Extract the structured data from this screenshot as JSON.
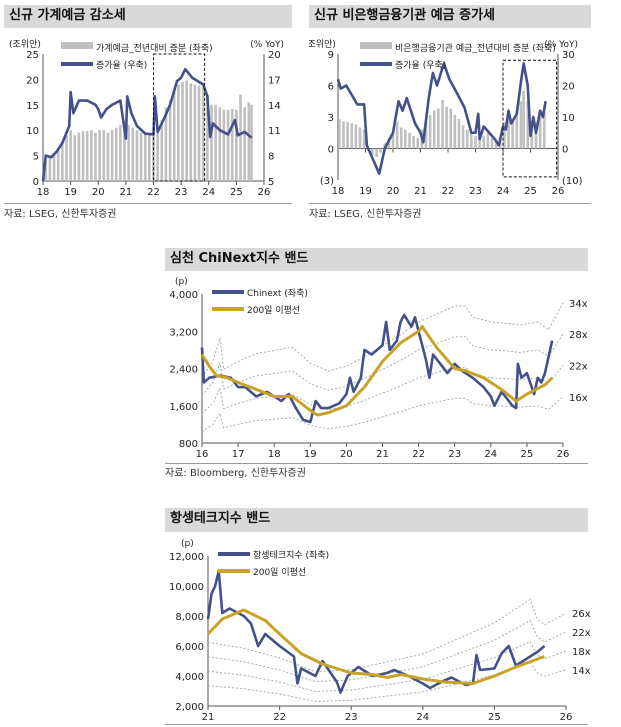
{
  "chart_data": [
    {
      "id": "c1",
      "type": "bar+line",
      "title": "신규 가계예금 감소세",
      "left_unit": "(조위안)",
      "right_unit": "(% YoY)",
      "xticks": [
        "18",
        "19",
        "20",
        "21",
        "22",
        "23",
        "24",
        "25",
        "26"
      ],
      "ylim": [
        0,
        25
      ],
      "yticks": [
        "0",
        "5",
        "10",
        "15",
        "20",
        "25"
      ],
      "y2lim": [
        5,
        20
      ],
      "y2ticks": [
        "5",
        "8",
        "11",
        "14",
        "17",
        "20"
      ],
      "series": [
        {
          "name": "가계예금_전년대비 증분 (좌축)",
          "kind": "bar",
          "color": "#bfbfbf",
          "x": [
            2018.1,
            2018.25,
            2018.4,
            2018.55,
            2018.7,
            2018.85,
            2019.0,
            2019.15,
            2019.3,
            2019.45,
            2019.6,
            2019.75,
            2019.9,
            2020.05,
            2020.2,
            2020.35,
            2020.5,
            2020.65,
            2020.8,
            2020.95,
            2021.1,
            2021.25,
            2021.4,
            2021.55,
            2021.7,
            2021.85,
            2022.0,
            2022.15,
            2022.3,
            2022.45,
            2022.6,
            2022.75,
            2022.9,
            2023.05,
            2023.2,
            2023.35,
            2023.5,
            2023.65,
            2023.8,
            2023.95,
            2024.1,
            2024.25,
            2024.4,
            2024.55,
            2024.7,
            2024.85,
            2025.0,
            2025.15,
            2025.3,
            2025.45,
            2025.55
          ],
          "y": [
            4,
            5,
            5.5,
            6.5,
            7.5,
            9,
            10,
            9,
            9.5,
            9.8,
            9.8,
            10,
            9.5,
            10,
            10,
            9.5,
            10,
            10.5,
            11,
            11,
            11,
            10.5,
            10,
            9.5,
            9.5,
            9.3,
            9.5,
            10.5,
            12,
            14.5,
            16,
            17.5,
            19,
            19.5,
            19.8,
            19.2,
            19,
            18.8,
            18.5,
            17,
            15,
            15,
            14.5,
            14,
            14,
            14.2,
            14,
            17,
            14.5,
            15.5,
            15
          ]
        },
        {
          "name": "증가율 (우축)",
          "kind": "line",
          "axis": "right",
          "color": "#44508a",
          "x": [
            2018.0,
            2018.1,
            2018.3,
            2018.5,
            2018.7,
            2018.95,
            2019.0,
            2019.1,
            2019.3,
            2019.6,
            2019.9,
            2020.0,
            2020.1,
            2020.3,
            2020.5,
            2020.8,
            2021.0,
            2021.05,
            2021.2,
            2021.4,
            2021.7,
            2022.0,
            2022.05,
            2022.15,
            2022.4,
            2022.6,
            2022.85,
            2023.0,
            2023.15,
            2023.4,
            2023.8,
            2023.95,
            2024.05,
            2024.15,
            2024.4,
            2024.7,
            2024.95,
            2025.05,
            2025.3,
            2025.55
          ],
          "y": [
            5,
            8,
            7.8,
            8.5,
            9.5,
            11.5,
            15.5,
            13,
            14.5,
            14.5,
            14,
            13.5,
            12.5,
            13.5,
            14,
            14.5,
            10,
            15,
            13,
            11.5,
            10.6,
            10.5,
            15,
            10.8,
            12.5,
            14,
            16.8,
            17.2,
            18.2,
            17.2,
            16.4,
            15,
            10.2,
            11.8,
            11,
            10.5,
            12.2,
            10.4,
            10.8,
            10.1
          ]
        }
      ],
      "highlight_box": {
        "x": [
          2022.0,
          2023.85
        ],
        "y": [
          0,
          25
        ]
      },
      "source": "자료: LSEG, 신한투자증권"
    },
    {
      "id": "c2",
      "type": "bar+line",
      "title": "신규 비은행금융기관 예금 증가세",
      "left_unit": "(조위안)",
      "right_unit": "(% YoY)",
      "xticks": [
        "18",
        "19",
        "20",
        "21",
        "22",
        "23",
        "24",
        "25",
        "26"
      ],
      "ylim": [
        -3,
        9
      ],
      "yticks": [
        "(3)",
        "0",
        "3",
        "6",
        "9"
      ],
      "y2lim": [
        -10,
        30
      ],
      "y2ticks": [
        "(10)",
        "0",
        "10",
        "20",
        "30"
      ],
      "series": [
        {
          "name": "비은행금융기관 예금_전년대비 증분 (좌축)",
          "kind": "bar",
          "color": "#bfbfbf",
          "x": [
            2018.05,
            2018.2,
            2018.35,
            2018.5,
            2018.65,
            2018.8,
            2018.95,
            2019.1,
            2019.25,
            2019.4,
            2019.55,
            2019.7,
            2019.85,
            2020.0,
            2020.15,
            2020.3,
            2020.45,
            2020.6,
            2020.75,
            2020.9,
            2021.05,
            2021.2,
            2021.35,
            2021.5,
            2021.65,
            2021.8,
            2021.95,
            2022.1,
            2022.25,
            2022.4,
            2022.55,
            2022.7,
            2022.85,
            2023.0,
            2023.15,
            2023.3,
            2023.45,
            2023.6,
            2023.75,
            2023.9,
            2024.05,
            2024.2,
            2024.35,
            2024.5,
            2024.65,
            2024.75,
            2024.9,
            2025.05,
            2025.2,
            2025.35,
            2025.5
          ],
          "y": [
            2.8,
            2.6,
            2.5,
            2.4,
            2.3,
            2,
            1.8,
            -0.2,
            -0.6,
            -0.8,
            -0.4,
            0.5,
            1,
            1.5,
            2.5,
            2,
            1.8,
            1.5,
            1.2,
            1,
            1.8,
            2.5,
            3.2,
            3.6,
            3.8,
            4.6,
            4,
            3.8,
            3.2,
            2.8,
            2.2,
            1.8,
            1.6,
            1.2,
            1.5,
            1.2,
            1.5,
            1,
            0.8,
            1,
            2.5,
            3,
            2.8,
            3.5,
            4.5,
            5.5,
            4.5,
            2.5,
            2.5,
            3,
            3.5
          ]
        },
        {
          "name": "증가율 (우축)",
          "kind": "line",
          "axis": "right",
          "color": "#44508a",
          "x": [
            2018.0,
            2018.1,
            2018.3,
            2018.7,
            2018.95,
            2019.05,
            2019.15,
            2019.5,
            2019.7,
            2020.0,
            2020.2,
            2020.35,
            2020.5,
            2020.8,
            2021.0,
            2021.1,
            2021.3,
            2021.45,
            2021.6,
            2021.85,
            2022.05,
            2022.3,
            2022.6,
            2022.85,
            2023.0,
            2023.1,
            2023.15,
            2023.3,
            2023.5,
            2023.7,
            2023.85,
            2024.0,
            2024.1,
            2024.2,
            2024.3,
            2024.5,
            2024.65,
            2024.75,
            2024.9,
            2025.0,
            2025.1,
            2025.2,
            2025.35,
            2025.45,
            2025.55
          ],
          "y": [
            22,
            19,
            20,
            14,
            14,
            1,
            -1,
            -8,
            0,
            5,
            15,
            12,
            16,
            8,
            5,
            2,
            16,
            24,
            20,
            27,
            22,
            18,
            13,
            5,
            5,
            11,
            3,
            7,
            5,
            3,
            1,
            7,
            6,
            12,
            8,
            11,
            21,
            27,
            20,
            4,
            10,
            5,
            12,
            10,
            15
          ]
        }
      ],
      "highlight_box": {
        "x": [
          2024.0,
          2025.95
        ],
        "y": [
          -2.7,
          8.4
        ]
      },
      "source": "자료: LSEG, 신한투자증권"
    },
    {
      "id": "c3",
      "type": "line",
      "title": "심천 ChiNext지수 밴드",
      "unit": "(p)",
      "xticks": [
        "16",
        "17",
        "18",
        "19",
        "20",
        "21",
        "22",
        "23",
        "24",
        "25",
        "26"
      ],
      "xlim": [
        2016,
        2026
      ],
      "ylim": [
        800,
        4000
      ],
      "yticks": [
        "800",
        "1,600",
        "2,400",
        "3,200",
        "4,000"
      ],
      "series": [
        {
          "name": "Chinext (좌축)",
          "color": "#44508a",
          "x": [
            2016.0,
            2016.05,
            2016.2,
            2016.5,
            2016.8,
            2017.0,
            2017.2,
            2017.5,
            2017.8,
            2018.0,
            2018.2,
            2018.4,
            2018.6,
            2018.8,
            2019.0,
            2019.15,
            2019.3,
            2019.5,
            2019.8,
            2020.0,
            2020.1,
            2020.2,
            2020.4,
            2020.5,
            2020.7,
            2021.0,
            2021.1,
            2021.2,
            2021.4,
            2021.5,
            2021.6,
            2021.8,
            2021.9,
            2022.0,
            2022.2,
            2022.3,
            2022.4,
            2022.6,
            2022.8,
            2023.0,
            2023.2,
            2023.5,
            2023.8,
            2024.0,
            2024.1,
            2024.3,
            2024.6,
            2024.7,
            2024.75,
            2024.85,
            2025.0,
            2025.2,
            2025.3,
            2025.4,
            2025.5,
            2025.7
          ],
          "y": [
            2850,
            2100,
            2200,
            2250,
            2200,
            2000,
            2000,
            1800,
            1900,
            1800,
            1700,
            1850,
            1550,
            1300,
            1250,
            1700,
            1550,
            1550,
            1650,
            1850,
            2200,
            1900,
            2200,
            2800,
            2700,
            2900,
            3400,
            2800,
            3000,
            3400,
            3550,
            3300,
            3500,
            3200,
            2600,
            2200,
            2700,
            2500,
            2300,
            2500,
            2350,
            2200,
            2000,
            1800,
            1600,
            1900,
            1600,
            1550,
            2500,
            2200,
            2300,
            1850,
            2200,
            2100,
            2300,
            3000
          ]
        },
        {
          "name": "200일 이평선",
          "color": "#c9a227",
          "x": [
            2016.0,
            2016.2,
            2016.4,
            2016.7,
            2017.0,
            2017.5,
            2018.0,
            2018.5,
            2019.0,
            2019.2,
            2019.5,
            2020.0,
            2020.5,
            2021.0,
            2021.5,
            2022.0,
            2022.1,
            2022.5,
            2023.0,
            2023.3,
            2023.8,
            2024.3,
            2024.7,
            2025.0,
            2025.5,
            2025.7
          ],
          "y": [
            2700,
            2450,
            2250,
            2200,
            2100,
            1950,
            1800,
            1800,
            1500,
            1400,
            1450,
            1600,
            2000,
            2550,
            2950,
            3200,
            3300,
            2850,
            2400,
            2350,
            2200,
            1950,
            1700,
            1850,
            2050,
            2200
          ]
        }
      ],
      "bands": {
        "labels": [
          "34x",
          "28x",
          "22x",
          "16x"
        ],
        "multiples": [
          34,
          28,
          22,
          16
        ],
        "color": "#aaaaaa",
        "eps_x": [
          2016.0,
          2016.3,
          2016.5,
          2016.6,
          2017.0,
          2017.5,
          2018.0,
          2018.5,
          2019.0,
          2019.5,
          2020.0,
          2020.5,
          2021.0,
          2021.5,
          2022.0,
          2022.5,
          2023.0,
          2023.3,
          2023.5,
          2024.0,
          2024.5,
          2024.8,
          2025.3,
          2025.6,
          2026.0
        ],
        "eps": [
          65,
          75,
          90,
          70,
          75,
          80,
          82,
          84,
          74,
          69,
          72,
          78,
          85,
          92,
          100,
          105,
          110,
          110,
          103,
          100,
          99,
          98,
          100,
          95,
          112
        ]
      },
      "source": "자료: Bloomberg, 신한투자증권"
    },
    {
      "id": "c4",
      "type": "line",
      "title": "항셍테크지수 밴드",
      "unit": "(p)",
      "xticks": [
        "21",
        "22",
        "23",
        "24",
        "25",
        "26"
      ],
      "xlim": [
        2021,
        2026
      ],
      "ylim": [
        2000,
        12000
      ],
      "yticks": [
        "2,000",
        "4,000",
        "6,000",
        "8,000",
        "10,000",
        "12,000"
      ],
      "series": [
        {
          "name": "항셍테크지수 (좌축)",
          "color": "#44508a",
          "x": [
            2021.0,
            2021.05,
            2021.1,
            2021.15,
            2021.2,
            2021.3,
            2021.5,
            2021.6,
            2021.7,
            2021.8,
            2022.0,
            2022.2,
            2022.25,
            2022.3,
            2022.5,
            2022.6,
            2022.8,
            2022.85,
            2022.95,
            2023.1,
            2023.3,
            2023.5,
            2023.6,
            2023.8,
            2024.0,
            2024.1,
            2024.3,
            2024.4,
            2024.6,
            2024.7,
            2024.75,
            2024.8,
            2025.0,
            2025.1,
            2025.2,
            2025.3,
            2025.5,
            2025.6,
            2025.7
          ],
          "y": [
            7800,
            9500,
            10000,
            11000,
            8200,
            8500,
            8000,
            7500,
            6000,
            6800,
            6000,
            5300,
            3500,
            4500,
            4000,
            5000,
            3600,
            2900,
            4000,
            4600,
            4000,
            4200,
            4400,
            4000,
            3500,
            3200,
            3700,
            3900,
            3400,
            3500,
            5400,
            4400,
            4500,
            5500,
            6000,
            4700,
            5300,
            5600,
            6000
          ]
        },
        {
          "name": "200일 이평선",
          "color": "#c9a227",
          "x": [
            2021.0,
            2021.2,
            2021.5,
            2021.8,
            2022.0,
            2022.3,
            2022.6,
            2023.0,
            2023.3,
            2023.5,
            2023.7,
            2024.0,
            2024.3,
            2024.7,
            2025.0,
            2025.3,
            2025.7
          ],
          "y": [
            6800,
            7800,
            8400,
            7700,
            6800,
            5500,
            4800,
            4200,
            4100,
            3900,
            4100,
            3800,
            3600,
            3500,
            4000,
            4600,
            5300
          ]
        }
      ],
      "bands": {
        "labels": [
          "26x",
          "22x",
          "18x",
          "14x"
        ],
        "multiples": [
          26,
          22,
          18,
          14
        ],
        "color": "#aaaaaa",
        "eps_x": [
          2021.0,
          2021.5,
          2022.0,
          2022.5,
          2023.0,
          2023.5,
          2024.0,
          2024.5,
          2025.0,
          2025.5,
          2025.6,
          2025.7,
          2026.0
        ],
        "eps": [
          240,
          225,
          200,
          165,
          170,
          190,
          210,
          250,
          290,
          350,
          300,
          285,
          315
        ]
      },
      "source": ""
    }
  ]
}
